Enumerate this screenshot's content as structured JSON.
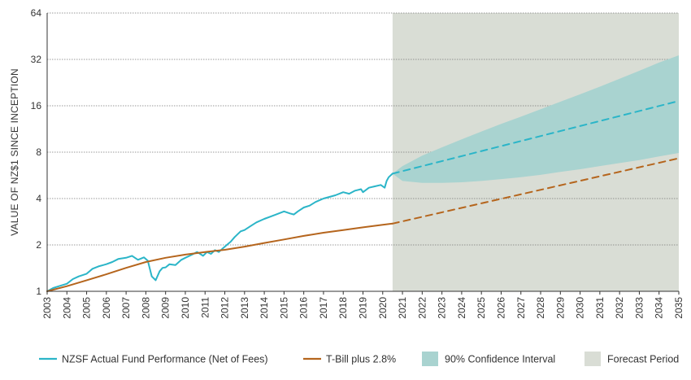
{
  "chart_data": {
    "type": "line",
    "ylabel": "VALUE OF NZ$1 SINCE INCEPTION",
    "y_scale": "log2",
    "ylim": [
      1,
      64
    ],
    "y_ticks": [
      1,
      2,
      4,
      8,
      16,
      32,
      64
    ],
    "y_tick_labels": [
      "1",
      "2",
      "4",
      "8",
      "16",
      "32",
      "64"
    ],
    "xlim": [
      2003,
      2035
    ],
    "x_ticks": [
      2003,
      2004,
      2005,
      2006,
      2007,
      2008,
      2009,
      2010,
      2011,
      2012,
      2013,
      2014,
      2015,
      2016,
      2017,
      2018,
      2019,
      2020,
      2021,
      2022,
      2023,
      2024,
      2025,
      2026,
      2027,
      2028,
      2029,
      2030,
      2031,
      2032,
      2033,
      2034,
      2035
    ],
    "x_tick_labels": [
      "2003",
      "2004",
      "2005",
      "2006",
      "2007",
      "2008",
      "2009",
      "2010",
      "2011",
      "2012",
      "2013",
      "2014",
      "2015",
      "2016",
      "2017",
      "2018",
      "2019",
      "2020",
      "2021",
      "2022",
      "2023",
      "2024",
      "2025",
      "2026",
      "2027",
      "2028",
      "2029",
      "2030",
      "2031",
      "2032",
      "2033",
      "2034",
      "2035"
    ],
    "grid": true,
    "legend_position": "bottom",
    "forecast_period": {
      "start": 2020.5,
      "end": 2035,
      "color": "#d9ddd5",
      "legend": "Forecast Period"
    },
    "confidence_interval": {
      "legend": "90% Confidence Interval",
      "color": "#a9d3d0",
      "x": [
        2020.5,
        2021,
        2022,
        2023,
        2024,
        2025,
        2026,
        2027,
        2028,
        2029,
        2030,
        2031,
        2032,
        2033,
        2034,
        2035
      ],
      "upper": [
        5.8,
        6.5,
        7.6,
        8.6,
        9.7,
        10.9,
        12.2,
        13.6,
        15.2,
        17.0,
        19.0,
        21.3,
        24.0,
        27.0,
        30.5,
        34.0
      ],
      "lower": [
        5.8,
        5.2,
        5.05,
        5.05,
        5.1,
        5.2,
        5.35,
        5.5,
        5.7,
        5.95,
        6.2,
        6.5,
        6.8,
        7.1,
        7.5,
        7.9
      ]
    },
    "series": [
      {
        "name": "NZSF Actual Fund Performance (Net of Fees)",
        "color": "#2bb5c8",
        "x": [
          2003.0,
          2003.3,
          2003.6,
          2004.0,
          2004.3,
          2004.6,
          2005.0,
          2005.3,
          2005.6,
          2006.0,
          2006.3,
          2006.6,
          2007.0,
          2007.3,
          2007.6,
          2007.9,
          2008.1,
          2008.3,
          2008.5,
          2008.7,
          2008.85,
          2009.0,
          2009.2,
          2009.5,
          2009.8,
          2010.0,
          2010.3,
          2010.6,
          2010.9,
          2011.1,
          2011.3,
          2011.5,
          2011.7,
          2011.9,
          2012.1,
          2012.3,
          2012.5,
          2012.8,
          2013.0,
          2013.3,
          2013.6,
          2014.0,
          2014.3,
          2014.6,
          2015.0,
          2015.3,
          2015.5,
          2015.7,
          2016.0,
          2016.3,
          2016.6,
          2017.0,
          2017.3,
          2017.6,
          2018.0,
          2018.3,
          2018.6,
          2018.9,
          2019.0,
          2019.3,
          2019.6,
          2019.9,
          2020.1,
          2020.2,
          2020.3,
          2020.5
        ],
        "values": [
          1.0,
          1.05,
          1.08,
          1.12,
          1.2,
          1.25,
          1.3,
          1.4,
          1.45,
          1.5,
          1.55,
          1.62,
          1.65,
          1.7,
          1.6,
          1.66,
          1.58,
          1.25,
          1.18,
          1.35,
          1.42,
          1.43,
          1.5,
          1.48,
          1.6,
          1.65,
          1.72,
          1.8,
          1.7,
          1.8,
          1.75,
          1.85,
          1.8,
          1.9,
          2.0,
          2.1,
          2.25,
          2.45,
          2.5,
          2.65,
          2.8,
          2.95,
          3.05,
          3.15,
          3.3,
          3.2,
          3.15,
          3.3,
          3.5,
          3.6,
          3.8,
          4.0,
          4.1,
          4.2,
          4.4,
          4.3,
          4.5,
          4.6,
          4.4,
          4.7,
          4.8,
          4.9,
          4.7,
          5.2,
          5.5,
          5.8
        ]
      },
      {
        "name": "NZSF Forecast",
        "color": "#2bb5c8",
        "dashed": true,
        "x": [
          2020.5,
          2035
        ],
        "values": [
          5.8,
          17.2
        ]
      },
      {
        "name": "T-Bill plus 2.8%",
        "color": "#b5651d",
        "x": [
          2003.0,
          2004,
          2005,
          2006,
          2007,
          2008,
          2009,
          2010,
          2011,
          2012,
          2013,
          2014,
          2015,
          2016,
          2017,
          2018,
          2019,
          2020,
          2020.5
        ],
        "values": [
          1.0,
          1.08,
          1.18,
          1.29,
          1.42,
          1.55,
          1.65,
          1.73,
          1.8,
          1.86,
          1.95,
          2.06,
          2.17,
          2.29,
          2.4,
          2.5,
          2.6,
          2.7,
          2.75
        ]
      },
      {
        "name": "T-Bill Forecast",
        "color": "#b5651d",
        "dashed": true,
        "x": [
          2020.5,
          2035
        ],
        "values": [
          2.75,
          7.3
        ]
      }
    ],
    "legend": [
      {
        "label": "NZSF Actual Fund Performance (Net of Fees)",
        "kind": "line",
        "color": "#2bb5c8"
      },
      {
        "label": "T-Bill plus 2.8%",
        "kind": "line",
        "color": "#b5651d"
      },
      {
        "label": "90% Confidence Interval",
        "kind": "box",
        "color": "#a9d3d0"
      },
      {
        "label": "Forecast Period",
        "kind": "box",
        "color": "#d9ddd5"
      }
    ]
  }
}
